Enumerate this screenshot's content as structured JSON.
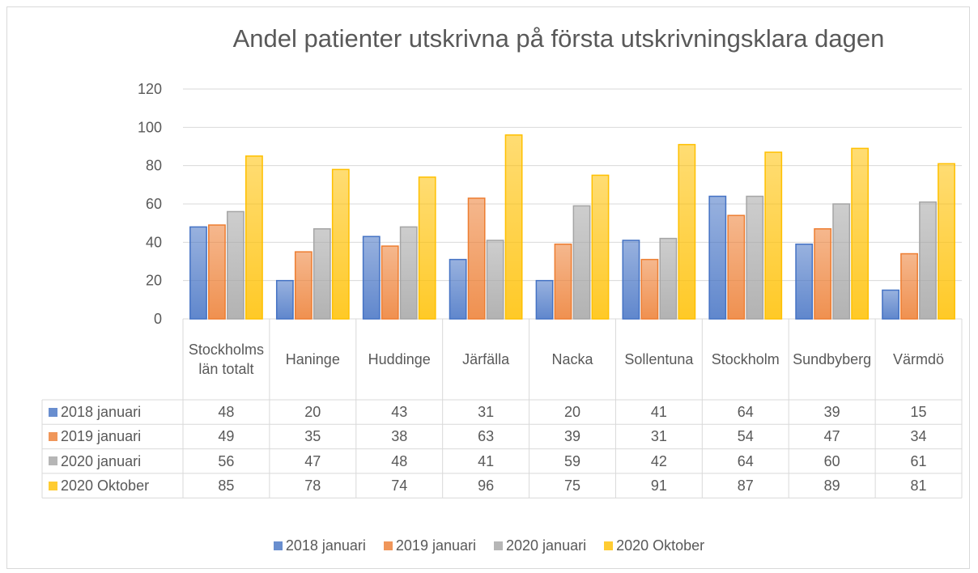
{
  "chart_data": {
    "type": "bar",
    "title": "Andel patienter utskrivna på första utskrivningsklara dagen",
    "categories": [
      "Stockholms län totalt",
      "Haninge",
      "Huddinge",
      "Järfälla",
      "Nacka",
      "Sollentuna",
      "Stockholm",
      "Sundbyberg",
      "Värmdö"
    ],
    "series": [
      {
        "name": "2018 januari",
        "color": "#4472c4",
        "values": [
          48,
          20,
          43,
          31,
          20,
          41,
          64,
          39,
          15
        ]
      },
      {
        "name": "2019 januari",
        "color": "#ed7d31",
        "values": [
          49,
          35,
          38,
          63,
          39,
          31,
          54,
          47,
          34
        ]
      },
      {
        "name": "2020 januari",
        "color": "#a5a5a5",
        "values": [
          56,
          47,
          48,
          41,
          59,
          42,
          64,
          60,
          61
        ]
      },
      {
        "name": "2020 Oktober",
        "color": "#ffc000",
        "values": [
          85,
          78,
          74,
          96,
          75,
          91,
          87,
          89,
          81
        ]
      }
    ],
    "ylim": [
      0,
      120
    ],
    "yticks": [
      0,
      20,
      40,
      60,
      80,
      100,
      120
    ],
    "grid": true,
    "data_table": true,
    "legend": "bottom"
  }
}
